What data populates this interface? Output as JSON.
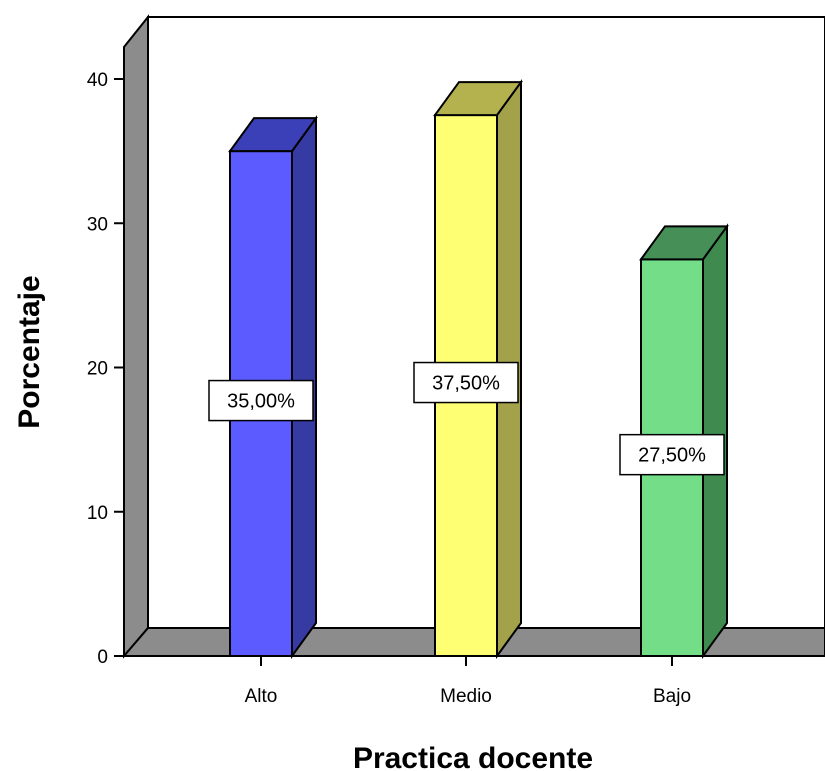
{
  "chart_data": {
    "type": "bar",
    "categories": [
      "Alto",
      "Medio",
      "Bajo"
    ],
    "values": [
      35.0,
      37.5,
      27.5
    ],
    "data_labels": [
      "35,00%",
      "37,50%",
      "27,50%"
    ],
    "colors": [
      "#5b5bff",
      "#ffff73",
      "#73de87"
    ],
    "side_colors": [
      "#363aa3",
      "#a3a24a",
      "#3f8b4f"
    ],
    "top_colors": [
      "#3c40b8",
      "#b4b24e",
      "#468f57"
    ],
    "title": "",
    "xlabel": "Practica docente",
    "ylabel": "Porcentaje",
    "ylim": [
      0,
      40
    ],
    "yticks": [
      "0",
      "10",
      "20",
      "30",
      "40"
    ],
    "style": "3d-bar",
    "grid": false,
    "legend": "none"
  }
}
